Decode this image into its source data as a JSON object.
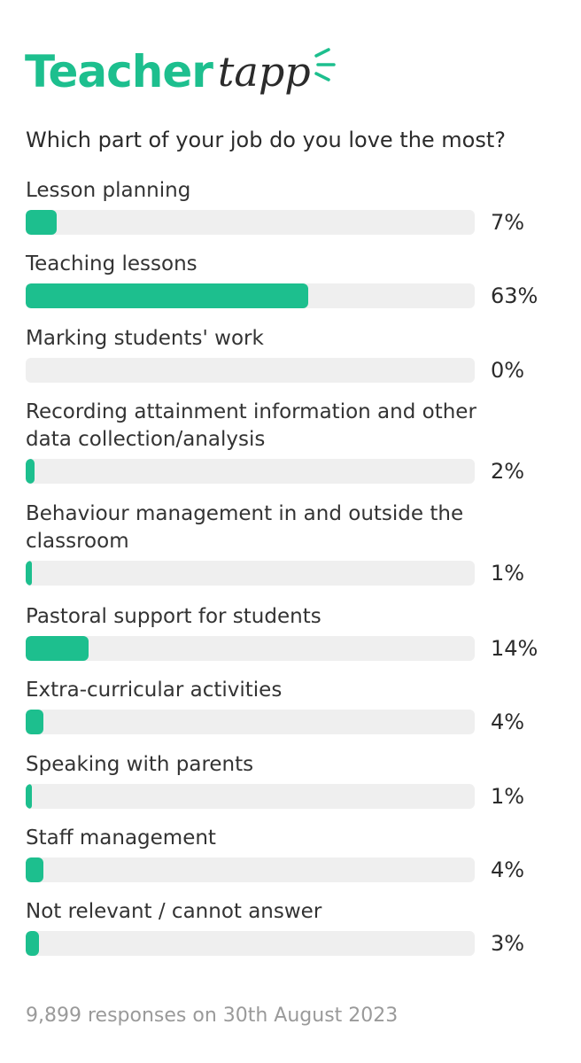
{
  "brand": {
    "word1": "Teacher",
    "word2": "tapp",
    "word1_color": "#1dbf8e",
    "word2_color": "#2b2b2b",
    "accent": "#1dbf8e",
    "spark_icon": "spark-lines-icon"
  },
  "chart_data": {
    "type": "bar",
    "title": "Which part of your job do you love the most?",
    "categories": [
      "Lesson planning",
      "Teaching lessons",
      "Marking students' work",
      "Recording attainment information and other data collection/analysis",
      "Behaviour management in and outside the classroom",
      "Pastoral support for students",
      "Extra-curricular activities",
      "Speaking with parents",
      "Staff management",
      "Not relevant / cannot answer"
    ],
    "values": [
      7,
      63,
      0,
      2,
      1,
      14,
      4,
      1,
      4,
      3
    ],
    "value_labels": [
      "7%",
      "63%",
      "0%",
      "2%",
      "1%",
      "14%",
      "4%",
      "1%",
      "4%",
      "3%"
    ],
    "unit": "%",
    "xlim": [
      0,
      100
    ],
    "bar_color": "#1dbf8e",
    "track_color": "#efefef",
    "orientation": "horizontal",
    "grid": false
  },
  "footer": {
    "text": "9,899 responses on 30th August 2023"
  }
}
